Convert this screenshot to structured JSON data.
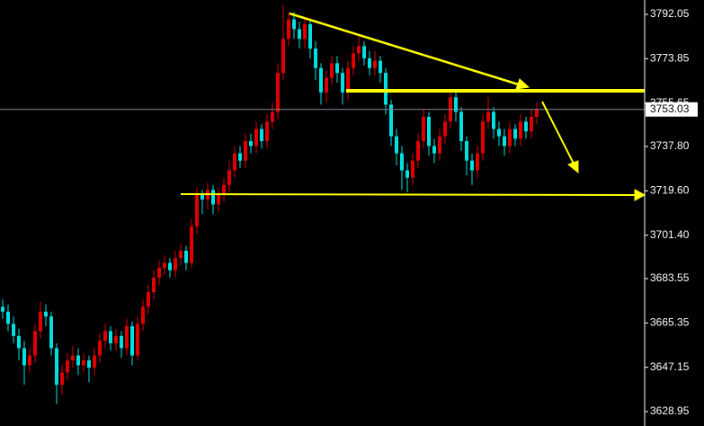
{
  "chart_data": {
    "type": "candlestick",
    "open": [
      3672,
      3670,
      3665,
      3660,
      3655,
      3648,
      3652,
      3662,
      3670,
      3668,
      3655,
      3640,
      3645,
      3650,
      3652,
      3648,
      3650,
      3647,
      3652,
      3658,
      3662,
      3657,
      3660,
      3655,
      3664,
      3652,
      3665,
      3672,
      3678,
      3684,
      3688,
      3690,
      3687,
      3692,
      3695,
      3690,
      3705,
      3718,
      3716,
      3720,
      3714,
      3718,
      3722,
      3728,
      3735,
      3732,
      3740,
      3738,
      3745,
      3740,
      3748,
      3752,
      3768,
      3782,
      3790,
      3786,
      3782,
      3788,
      3778,
      3770,
      3760,
      3766,
      3772,
      3768,
      3760,
      3770,
      3776,
      3779,
      3774,
      3770,
      3773,
      3768,
      3755,
      3742,
      3735,
      3728,
      3725,
      3732,
      3740,
      3750,
      3738,
      3735,
      3742,
      3748,
      3758,
      3752,
      3740,
      3732,
      3728,
      3735,
      3748,
      3752,
      3745,
      3742,
      3738,
      3745,
      3741,
      3748,
      3744,
      3750
    ],
    "high": [
      3675,
      3673,
      3668,
      3663,
      3658,
      3655,
      3665,
      3674,
      3673,
      3670,
      3657,
      3648,
      3653,
      3656,
      3655,
      3653,
      3652,
      3655,
      3661,
      3665,
      3664,
      3663,
      3662,
      3667,
      3666,
      3668,
      3675,
      3681,
      3687,
      3691,
      3693,
      3692,
      3695,
      3698,
      3697,
      3708,
      3721,
      3720,
      3723,
      3722,
      3721,
      3725,
      3732,
      3738,
      3738,
      3743,
      3743,
      3748,
      3747,
      3751,
      3756,
      3772,
      3796,
      3793,
      3793,
      3789,
      3791,
      3790,
      3781,
      3772,
      3769,
      3775,
      3775,
      3770,
      3773,
      3779,
      3783,
      3781,
      3777,
      3777,
      3775,
      3770,
      3757,
      3745,
      3738,
      3731,
      3735,
      3743,
      3753,
      3752,
      3741,
      3745,
      3751,
      3761,
      3760,
      3754,
      3742,
      3735,
      3738,
      3751,
      3758,
      3754,
      3748,
      3745,
      3748,
      3747,
      3751,
      3750,
      3753,
      3756
    ],
    "low": [
      3667,
      3662,
      3657,
      3650,
      3640,
      3645,
      3649,
      3659,
      3664,
      3652,
      3632,
      3636,
      3642,
      3647,
      3644,
      3645,
      3641,
      3644,
      3649,
      3655,
      3654,
      3654,
      3651,
      3652,
      3648,
      3650,
      3662,
      3669,
      3675,
      3681,
      3685,
      3684,
      3684,
      3689,
      3687,
      3688,
      3702,
      3710,
      3712,
      3710,
      3711,
      3715,
      3719,
      3725,
      3729,
      3729,
      3735,
      3735,
      3737,
      3737,
      3745,
      3749,
      3765,
      3779,
      3782,
      3778,
      3778,
      3774,
      3765,
      3755,
      3756,
      3763,
      3764,
      3755,
      3757,
      3767,
      3773,
      3771,
      3767,
      3767,
      3764,
      3751,
      3738,
      3730,
      3720,
      3719,
      3722,
      3729,
      3737,
      3734,
      3731,
      3732,
      3739,
      3745,
      3748,
      3736,
      3726,
      3722,
      3725,
      3732,
      3745,
      3741,
      3738,
      3734,
      3735,
      3738,
      3738,
      3741,
      3741,
      3747
    ],
    "close": [
      3670,
      3665,
      3660,
      3655,
      3648,
      3652,
      3662,
      3670,
      3668,
      3655,
      3640,
      3645,
      3650,
      3652,
      3648,
      3650,
      3647,
      3652,
      3658,
      3662,
      3657,
      3660,
      3655,
      3664,
      3652,
      3665,
      3672,
      3678,
      3684,
      3688,
      3690,
      3687,
      3692,
      3695,
      3690,
      3705,
      3718,
      3716,
      3720,
      3714,
      3718,
      3722,
      3728,
      3735,
      3732,
      3740,
      3738,
      3745,
      3740,
      3748,
      3752,
      3768,
      3782,
      3790,
      3786,
      3782,
      3788,
      3778,
      3770,
      3760,
      3766,
      3772,
      3768,
      3760,
      3770,
      3776,
      3779,
      3774,
      3770,
      3773,
      3768,
      3755,
      3742,
      3735,
      3728,
      3725,
      3732,
      3740,
      3750,
      3738,
      3735,
      3742,
      3748,
      3758,
      3752,
      3740,
      3732,
      3728,
      3735,
      3748,
      3752,
      3745,
      3742,
      3738,
      3745,
      3741,
      3748,
      3744,
      3750,
      3753
    ],
    "up_color": "#e00000",
    "down_color": "#00e0e0",
    "ylim": [
      3623.05,
      3797.95
    ],
    "yticks": [
      3792.05,
      3773.85,
      3755.65,
      {
        "value": 3737.8,
        "label": "3737.80"
      },
      {
        "value": 3719.6,
        "label": "3719.60"
      },
      {
        "value": 3701.4,
        "label": "3701.40"
      },
      3683.55,
      3665.35,
      3647.15,
      3628.95
    ],
    "last_price": 3753.03,
    "last_price_color": "#8a8a9a"
  }
}
